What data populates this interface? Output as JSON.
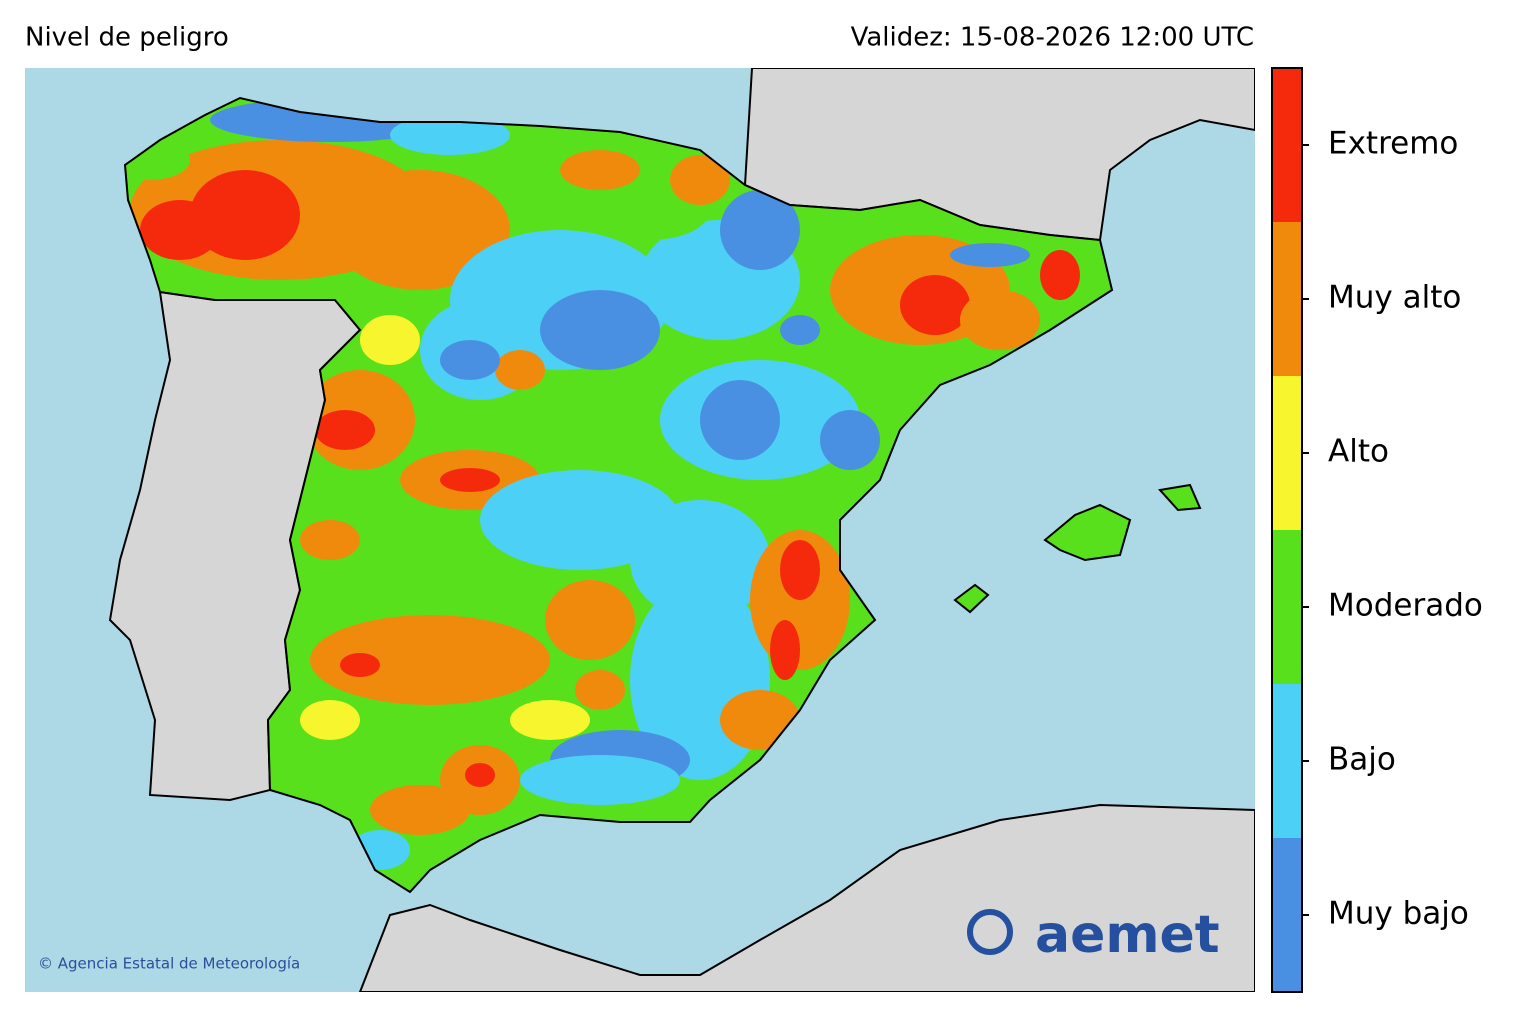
{
  "header": {
    "title": "Nivel de peligro",
    "validity": "Validez: 15-08-2026 12:00 UTC"
  },
  "legend": {
    "levels": [
      {
        "label": "Muy bajo",
        "color": "#4a90e2"
      },
      {
        "label": "Bajo",
        "color": "#4dd0f5"
      },
      {
        "label": "Moderado",
        "color": "#58e01c"
      },
      {
        "label": "Alto",
        "color": "#f7f52e"
      },
      {
        "label": "Muy alto",
        "color": "#f08a0c"
      },
      {
        "label": "Extremo",
        "color": "#f52a0c"
      }
    ]
  },
  "credit": "© Agencia Estatal de Meteorología",
  "logo": "aemet"
}
